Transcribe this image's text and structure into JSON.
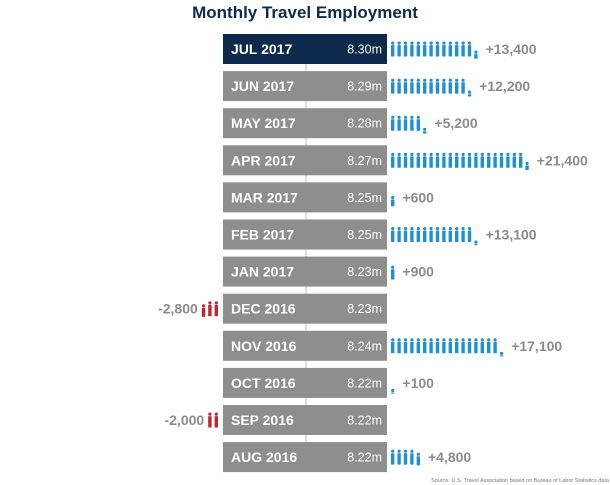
{
  "chart_data": {
    "type": "bar",
    "title": "Monthly Travel Employment",
    "source": "Source: U.S. Travel Association based on Bureau of Labor Statistics data",
    "categories": [
      "JUL 2017",
      "JUN 2017",
      "MAY 2017",
      "APR 2017",
      "MAR 2017",
      "FEB 2017",
      "JAN 2017",
      "DEC 2016",
      "NOV 2016",
      "OCT 2016",
      "SEP 2016",
      "AUG 2016"
    ],
    "levels": [
      "8.30m",
      "8.29m",
      "8.28m",
      "8.27m",
      "8.25m",
      "8.25m",
      "8.23m",
      "8.23m",
      "8.24m",
      "8.22m",
      "8.22m",
      "8.22m"
    ],
    "values": [
      13400,
      12200,
      5200,
      21400,
      600,
      13100,
      900,
      -2800,
      17100,
      100,
      -2000,
      4800
    ],
    "value_labels": [
      "+13,400",
      "+12,200",
      "+5,200",
      "+21,400",
      "+600",
      "+13,100",
      "+900",
      "-2,800",
      "+17,100",
      "+100",
      "-2,000",
      "+4,800"
    ],
    "highlight_category": "JUL 2017",
    "colors": {
      "highlight": "#0d2a4d",
      "row": "#8e8e8e",
      "positive": "#1f8fcf",
      "negative": "#c0272d",
      "label": "#8c8c8c",
      "title": "#0d2a4d"
    }
  }
}
